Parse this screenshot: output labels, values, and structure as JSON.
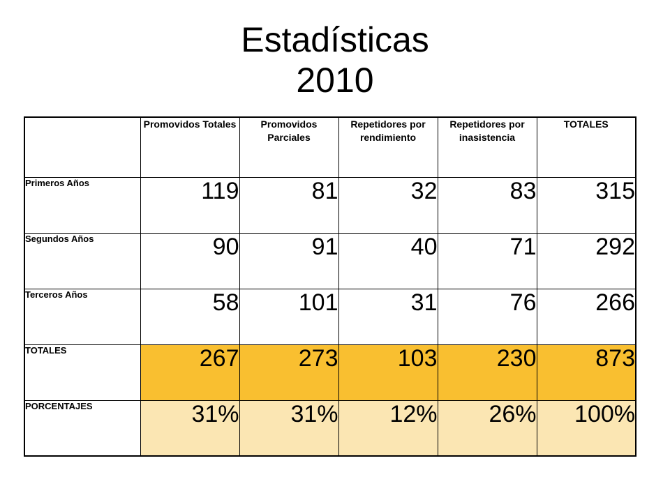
{
  "title": {
    "line1": "Estadísticas",
    "line2": "2010"
  },
  "table": {
    "headers": [
      "",
      "Promovidos Totales",
      "Promovidos Parciales",
      "Repetidores por rendimiento",
      "Repetidores por inasistencia",
      "TOTALES"
    ],
    "rows": [
      {
        "label": "Primeros Años",
        "values": [
          "119",
          "81",
          "32",
          "83",
          "315"
        ]
      },
      {
        "label": "Segundos Años",
        "values": [
          "90",
          "91",
          "40",
          "71",
          "292"
        ]
      },
      {
        "label": "Terceros Años",
        "values": [
          "58",
          "101",
          "31",
          "76",
          "266"
        ]
      },
      {
        "label": "TOTALES",
        "values": [
          "267",
          "273",
          "103",
          "230",
          "873"
        ]
      },
      {
        "label": "PORCENTAJES",
        "values": [
          "31%",
          "31%",
          "12%",
          "26%",
          "100%"
        ]
      }
    ]
  },
  "colors": {
    "totals_fill": "#f9bf30",
    "percent_fill": "#fbe6b3"
  }
}
